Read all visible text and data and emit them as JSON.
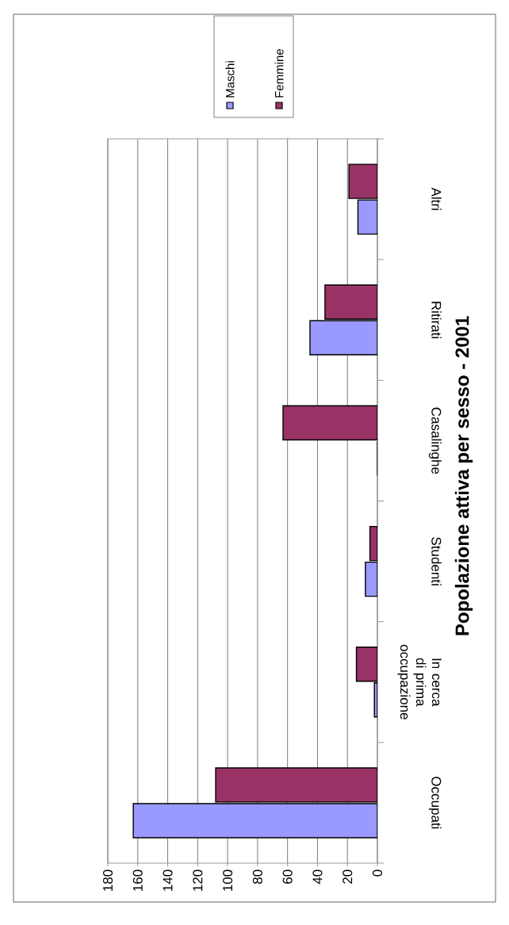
{
  "chart_data": {
    "type": "bar",
    "orientation": "horizontal",
    "title": "Popolazione attiva per sesso - 2001",
    "categories": [
      "Altri",
      "Ritirati",
      "Casalinghe",
      "Studenti",
      "In cerca di prima occupazione",
      "Occupati"
    ],
    "series": [
      {
        "name": "Maschi",
        "color": "#9999ff",
        "values": [
          13,
          45,
          0,
          8,
          2,
          163
        ]
      },
      {
        "name": "Femmine",
        "color": "#993366",
        "values": [
          19,
          35,
          63,
          5,
          14,
          108
        ]
      }
    ],
    "xlim": [
      180,
      0
    ],
    "xticks": [
      0,
      20,
      40,
      60,
      80,
      100,
      120,
      140,
      160,
      180
    ],
    "grid": "x",
    "legend": "top"
  }
}
